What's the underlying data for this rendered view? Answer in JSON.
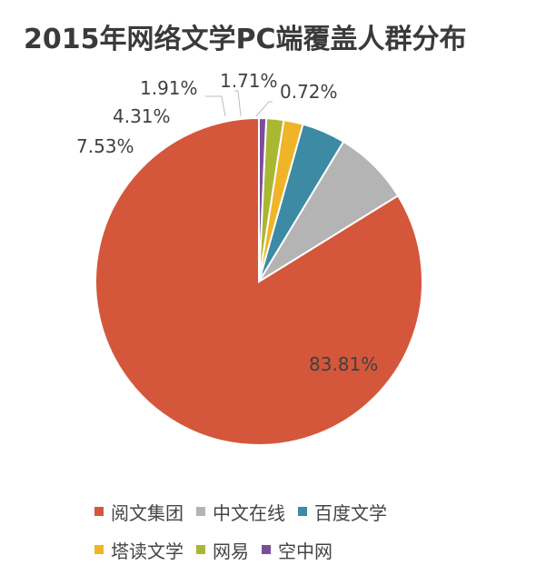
{
  "chart_data": {
    "type": "pie",
    "title": "2015年网络文学PC端覆盖人群分布",
    "unit": "%",
    "slices": [
      {
        "label": "阅文集团",
        "value": 83.81,
        "value_label": "83.81%",
        "color": "#d4573b"
      },
      {
        "label": "中文在线",
        "value": 7.53,
        "value_label": "7.53%",
        "color": "#b4b4b4"
      },
      {
        "label": "百度文学",
        "value": 4.31,
        "value_label": "4.31%",
        "color": "#3c8aa3"
      },
      {
        "label": "塔读文学",
        "value": 1.91,
        "value_label": "1.91%",
        "color": "#f0b428"
      },
      {
        "label": "网易",
        "value": 1.71,
        "value_label": "1.71%",
        "color": "#a8b832"
      },
      {
        "label": "空中网",
        "value": 0.72,
        "value_label": "0.72%",
        "color": "#7b4e9a"
      }
    ],
    "start_angle": "top",
    "direction": "counterclockwise",
    "legend_placement": "bottom",
    "legend_rows": [
      [
        "阅文集团",
        "中文在线",
        "百度文学"
      ],
      [
        "塔读文学",
        "网易",
        "空中网"
      ]
    ]
  }
}
